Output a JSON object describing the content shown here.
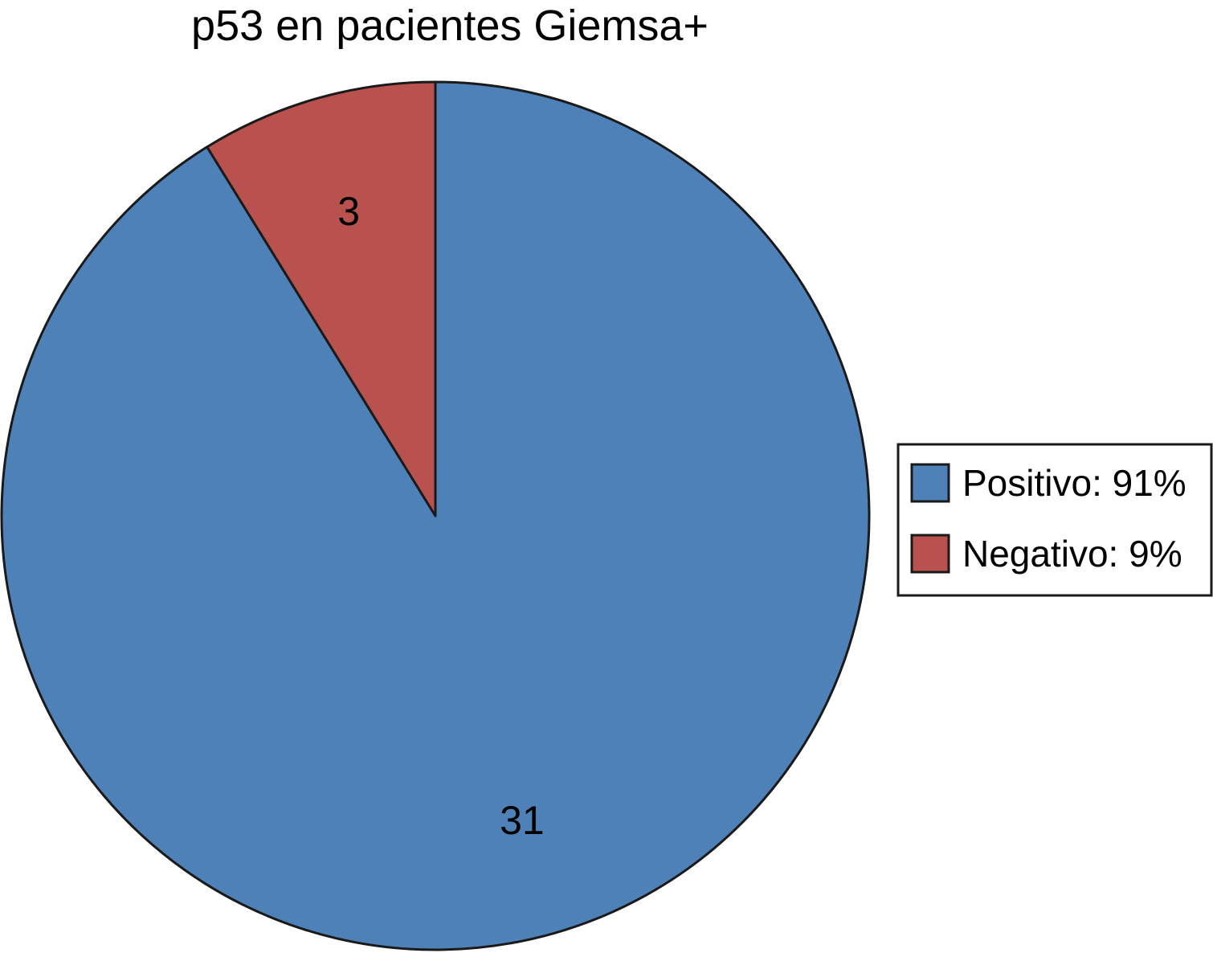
{
  "chart_data": {
    "type": "pie",
    "title": "p53 en pacientes Giemsa+",
    "start_angle_deg": 0,
    "direction": "clockwise",
    "legend_position": "right",
    "slices": [
      {
        "name": "Positivo",
        "value": 31,
        "data_label": "31",
        "legend_label": "Positivo: 91%",
        "color": "#4f81b9"
      },
      {
        "name": "Negativo",
        "value": 3,
        "data_label": "3",
        "legend_label": "Negativo: 9%",
        "color": "#b9524f"
      }
    ]
  }
}
